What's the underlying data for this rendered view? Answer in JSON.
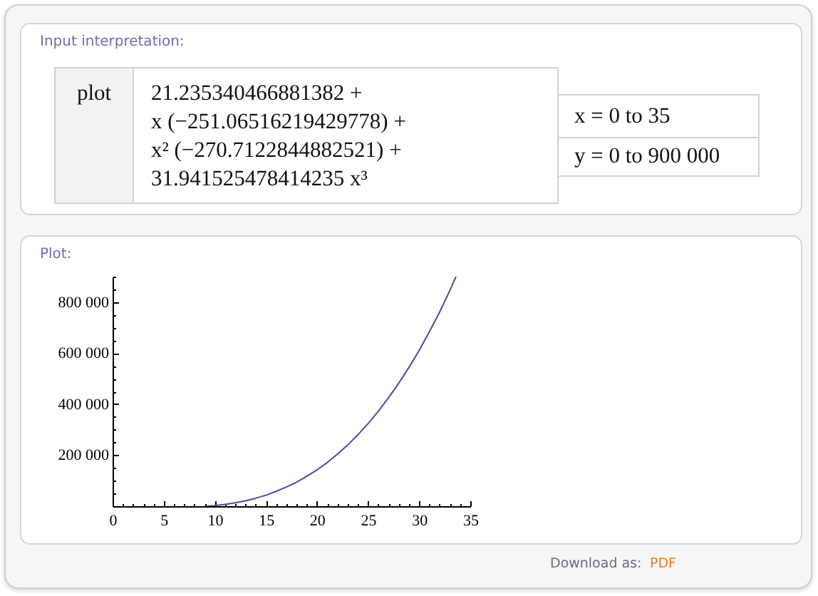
{
  "chart_data": {
    "type": "line",
    "title": "Plot:",
    "annotations": [
      "Input interpretation:",
      "plot",
      "21.235340466881382 +",
      "x (−251.06516219429778) +",
      "x² (−270.7122844882521) +",
      "31.941525478414235 x³",
      "x = 0 to 35",
      "y = 0 to 900 000",
      "Download as:",
      "PDF"
    ],
    "x": [
      9.3,
      10,
      11,
      12,
      13,
      14,
      15,
      16,
      17,
      18,
      19,
      20,
      21,
      22,
      23,
      24,
      25,
      26,
      27,
      28,
      29,
      30,
      31,
      32,
      33,
      33.6
    ],
    "series": [
      {
        "color": "#4a4aa6",
        "values": [
          0,
          2000,
          7000,
          13000,
          21000,
          31000,
          43000,
          58000,
          75000,
          94000,
          117000,
          142000,
          171000,
          204000,
          240000,
          280000,
          324000,
          372000,
          425000,
          482000,
          544000,
          611000,
          684000,
          761000,
          845000,
          900000
        ]
      }
    ],
    "xlim": [
      0,
      35
    ],
    "ylim": [
      0,
      900000
    ],
    "xticks": [
      0,
      {
        "value": 1,
        "label": null
      },
      {
        "value": 2,
        "label": null
      },
      {
        "value": 3,
        "label": null
      },
      {
        "value": 4,
        "label": null
      },
      5,
      {
        "value": 6,
        "label": null
      },
      {
        "value": 7,
        "label": null
      },
      {
        "value": 8,
        "label": null
      },
      {
        "value": 9,
        "label": null
      },
      10,
      {
        "value": 11,
        "label": null
      },
      {
        "value": 12,
        "label": null
      },
      {
        "value": 13,
        "label": null
      },
      {
        "value": 14,
        "label": null
      },
      15,
      {
        "value": 16,
        "label": null
      },
      {
        "value": 17,
        "label": null
      },
      {
        "value": 18,
        "label": null
      },
      {
        "value": 19,
        "label": null
      },
      20,
      {
        "value": 21,
        "label": null
      },
      {
        "value": 22,
        "label": null
      },
      {
        "value": 23,
        "label": null
      },
      {
        "value": 24,
        "label": null
      },
      25,
      {
        "value": 26,
        "label": null
      },
      {
        "value": 27,
        "label": null
      },
      {
        "value": 28,
        "label": null
      },
      {
        "value": 29,
        "label": null
      },
      30,
      {
        "value": 31,
        "label": null
      },
      {
        "value": 32,
        "label": null
      },
      {
        "value": 33,
        "label": null
      },
      {
        "value": 34,
        "label": null
      },
      35
    ],
    "yticks": [
      {
        "value": 50000,
        "label": null
      },
      {
        "value": 100000,
        "label": null
      },
      {
        "value": 150000,
        "label": null
      },
      {
        "value": 200000,
        "label": "200 000"
      },
      {
        "value": 250000,
        "label": null
      },
      {
        "value": 300000,
        "label": null
      },
      {
        "value": 350000,
        "label": null
      },
      {
        "value": 400000,
        "label": "400 000"
      },
      {
        "value": 450000,
        "label": null
      },
      {
        "value": 500000,
        "label": null
      },
      {
        "value": 550000,
        "label": null
      },
      {
        "value": 600000,
        "label": "600 000"
      },
      {
        "value": 650000,
        "label": null
      },
      {
        "value": 700000,
        "label": null
      },
      {
        "value": 750000,
        "label": null
      },
      {
        "value": 800000,
        "label": "800 000"
      },
      {
        "value": 850000,
        "label": null
      },
      {
        "value": 900000,
        "label": null
      }
    ],
    "grid": false,
    "marker": "none",
    "line_style": "solid"
  }
}
